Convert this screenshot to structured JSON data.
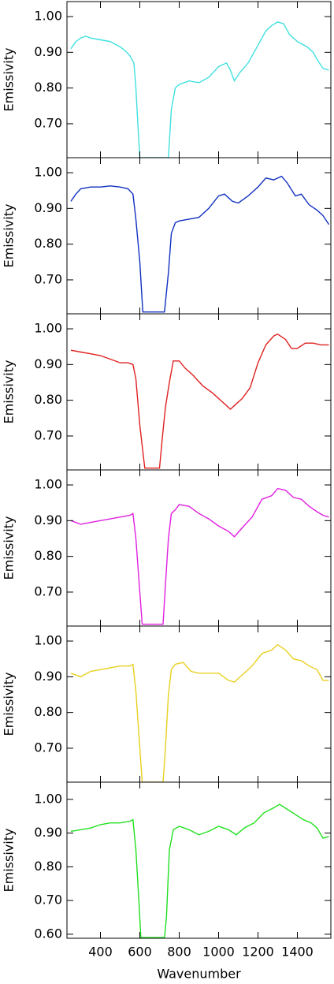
{
  "chart_data": [
    {
      "type": "line",
      "ylabel": "Emissivity",
      "color": "#40e0e0",
      "xlim": [
        230,
        1570
      ],
      "ylim": [
        0.605,
        1.042
      ],
      "yticks": [
        {
          "value": 0.7,
          "label": "0.70"
        },
        {
          "value": 0.8,
          "label": "0.80"
        },
        {
          "value": 0.9,
          "label": "0.90"
        },
        {
          "value": 1.0,
          "label": "1.00"
        }
      ],
      "x": [
        250,
        275,
        300,
        325,
        350,
        400,
        450,
        500,
        525,
        550,
        570,
        580,
        590,
        600,
        745,
        760,
        780,
        800,
        850,
        900,
        950,
        1000,
        1040,
        1060,
        1080,
        1110,
        1150,
        1200,
        1240,
        1270,
        1300,
        1330,
        1360,
        1400,
        1450,
        1480,
        1500,
        1530,
        1560
      ],
      "values": [
        0.91,
        0.93,
        0.94,
        0.945,
        0.94,
        0.935,
        0.93,
        0.915,
        0.905,
        0.89,
        0.87,
        0.8,
        0.7,
        0.605,
        0.605,
        0.74,
        0.8,
        0.81,
        0.82,
        0.815,
        0.83,
        0.86,
        0.87,
        0.85,
        0.82,
        0.845,
        0.87,
        0.92,
        0.96,
        0.975,
        0.985,
        0.98,
        0.95,
        0.93,
        0.915,
        0.9,
        0.88,
        0.855,
        0.85
      ]
    },
    {
      "type": "line",
      "ylabel": "Emissivity",
      "color": "#1030c0",
      "xlim": [
        230,
        1570
      ],
      "ylim": [
        0.605,
        1.042
      ],
      "yticks": [
        {
          "value": 0.7,
          "label": "0.70"
        },
        {
          "value": 0.8,
          "label": "0.80"
        },
        {
          "value": 0.9,
          "label": "0.90"
        },
        {
          "value": 1.0,
          "label": "1.00"
        }
      ],
      "x": [
        250,
        275,
        300,
        350,
        400,
        450,
        500,
        540,
        565,
        580,
        600,
        615,
        725,
        745,
        760,
        780,
        800,
        850,
        900,
        950,
        1000,
        1030,
        1070,
        1100,
        1150,
        1200,
        1240,
        1280,
        1320,
        1350,
        1390,
        1420,
        1460,
        1500,
        1530,
        1560
      ],
      "values": [
        0.92,
        0.94,
        0.955,
        0.96,
        0.96,
        0.963,
        0.96,
        0.955,
        0.94,
        0.87,
        0.75,
        0.61,
        0.61,
        0.72,
        0.83,
        0.86,
        0.865,
        0.87,
        0.875,
        0.9,
        0.935,
        0.94,
        0.92,
        0.915,
        0.935,
        0.96,
        0.985,
        0.98,
        0.99,
        0.97,
        0.935,
        0.94,
        0.91,
        0.895,
        0.88,
        0.855
      ]
    },
    {
      "type": "line",
      "ylabel": "Emissivity",
      "color": "#e02020",
      "xlim": [
        230,
        1570
      ],
      "ylim": [
        0.605,
        1.042
      ],
      "yticks": [
        {
          "value": 0.7,
          "label": "0.70"
        },
        {
          "value": 0.8,
          "label": "0.80"
        },
        {
          "value": 0.9,
          "label": "0.90"
        },
        {
          "value": 1.0,
          "label": "1.00"
        }
      ],
      "x": [
        250,
        300,
        350,
        400,
        450,
        500,
        540,
        565,
        580,
        600,
        625,
        700,
        715,
        730,
        750,
        770,
        800,
        830,
        870,
        920,
        970,
        1020,
        1060,
        1090,
        1120,
        1160,
        1200,
        1240,
        1280,
        1300,
        1340,
        1370,
        1400,
        1440,
        1480,
        1520,
        1560
      ],
      "values": [
        0.94,
        0.935,
        0.93,
        0.925,
        0.915,
        0.905,
        0.905,
        0.9,
        0.86,
        0.73,
        0.61,
        0.61,
        0.7,
        0.78,
        0.85,
        0.91,
        0.91,
        0.89,
        0.87,
        0.84,
        0.82,
        0.795,
        0.775,
        0.79,
        0.805,
        0.835,
        0.905,
        0.955,
        0.98,
        0.985,
        0.97,
        0.945,
        0.945,
        0.96,
        0.96,
        0.955,
        0.955
      ]
    },
    {
      "type": "line",
      "ylabel": "Emissivity",
      "color": "#e020e0",
      "xlim": [
        230,
        1570
      ],
      "ylim": [
        0.605,
        1.042
      ],
      "yticks": [
        {
          "value": 0.7,
          "label": "0.70"
        },
        {
          "value": 0.8,
          "label": "0.80"
        },
        {
          "value": 0.9,
          "label": "0.90"
        },
        {
          "value": 1.0,
          "label": "1.00"
        }
      ],
      "x": [
        250,
        300,
        350,
        400,
        450,
        500,
        550,
        565,
        580,
        600,
        612,
        718,
        730,
        745,
        760,
        780,
        800,
        850,
        900,
        950,
        1000,
        1050,
        1080,
        1120,
        1170,
        1220,
        1270,
        1300,
        1340,
        1380,
        1420,
        1460,
        1500,
        1530,
        1560
      ],
      "values": [
        0.9,
        0.89,
        0.895,
        0.9,
        0.905,
        0.91,
        0.915,
        0.92,
        0.85,
        0.7,
        0.61,
        0.61,
        0.72,
        0.85,
        0.92,
        0.93,
        0.945,
        0.94,
        0.92,
        0.905,
        0.885,
        0.87,
        0.855,
        0.88,
        0.91,
        0.96,
        0.97,
        0.99,
        0.985,
        0.965,
        0.96,
        0.94,
        0.925,
        0.915,
        0.91
      ]
    },
    {
      "type": "line",
      "ylabel": "Emissivity",
      "color": "#e8d020",
      "xlim": [
        230,
        1570
      ],
      "ylim": [
        0.605,
        1.042
      ],
      "yticks": [
        {
          "value": 0.7,
          "label": "0.70"
        },
        {
          "value": 0.8,
          "label": "0.80"
        },
        {
          "value": 0.9,
          "label": "0.90"
        },
        {
          "value": 1.0,
          "label": "1.00"
        }
      ],
      "x": [
        250,
        300,
        350,
        400,
        450,
        500,
        550,
        565,
        580,
        600,
        612,
        718,
        730,
        745,
        760,
        780,
        820,
        860,
        900,
        950,
        1000,
        1050,
        1080,
        1120,
        1170,
        1220,
        1270,
        1300,
        1340,
        1380,
        1420,
        1460,
        1500,
        1530,
        1560
      ],
      "values": [
        0.91,
        0.9,
        0.915,
        0.92,
        0.925,
        0.93,
        0.93,
        0.935,
        0.86,
        0.7,
        0.605,
        0.605,
        0.7,
        0.85,
        0.92,
        0.935,
        0.94,
        0.915,
        0.91,
        0.91,
        0.91,
        0.89,
        0.885,
        0.905,
        0.93,
        0.965,
        0.975,
        0.99,
        0.975,
        0.95,
        0.945,
        0.93,
        0.92,
        0.89,
        0.89
      ]
    },
    {
      "type": "line",
      "ylabel": "Emissivity",
      "xlabel": "Wavenumber",
      "color": "#20e020",
      "xlim": [
        230,
        1570
      ],
      "ylim": [
        0.588,
        1.051
      ],
      "yticks": [
        {
          "value": 0.6,
          "label": "0.60"
        },
        {
          "value": 0.7,
          "label": "0.70"
        },
        {
          "value": 0.8,
          "label": "0.80"
        },
        {
          "value": 0.9,
          "label": "0.90"
        },
        {
          "value": 1.0,
          "label": "1.00"
        }
      ],
      "xticks": [
        400,
        600,
        800,
        1000,
        1200,
        1400
      ],
      "x": [
        250,
        300,
        350,
        400,
        450,
        500,
        550,
        565,
        580,
        595,
        605,
        725,
        735,
        750,
        770,
        800,
        850,
        900,
        950,
        1000,
        1050,
        1090,
        1130,
        1180,
        1230,
        1280,
        1310,
        1350,
        1390,
        1430,
        1470,
        1500,
        1530,
        1560
      ],
      "values": [
        0.905,
        0.91,
        0.915,
        0.925,
        0.93,
        0.93,
        0.935,
        0.94,
        0.85,
        0.7,
        0.59,
        0.59,
        0.65,
        0.85,
        0.91,
        0.92,
        0.91,
        0.895,
        0.905,
        0.92,
        0.91,
        0.895,
        0.915,
        0.93,
        0.96,
        0.975,
        0.985,
        0.97,
        0.955,
        0.94,
        0.93,
        0.915,
        0.885,
        0.89
      ]
    }
  ]
}
